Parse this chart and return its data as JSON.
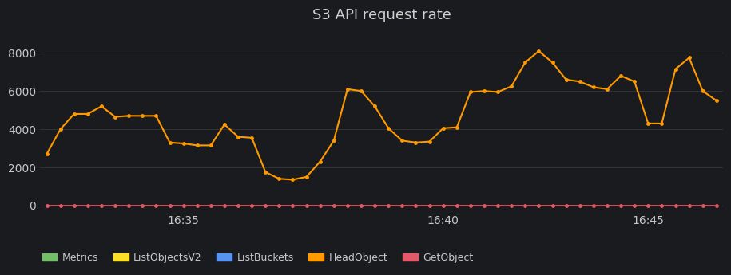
{
  "title": "S3 API request rate",
  "background_color": "#1a1b1e",
  "plot_background_color": "#1a1b1e",
  "grid_color": "#333336",
  "text_color": "#c8c8c8",
  "title_color": "#d0d0d0",
  "x_tick_labels": [
    "16:35",
    "16:40",
    "16:45"
  ],
  "ylim": [
    -300,
    9200
  ],
  "yticks": [
    0,
    2000,
    4000,
    6000,
    8000
  ],
  "head_object_color": "#ff9900",
  "get_object_color": "#e05a6a",
  "metrics_color": "#73bf69",
  "list_objects_color": "#fade2a",
  "list_buckets_color": "#5794f2",
  "head_object_data": [
    2700,
    4000,
    4800,
    4800,
    5200,
    4650,
    4700,
    4700,
    4700,
    3300,
    3250,
    3150,
    3150,
    4250,
    3600,
    3550,
    1750,
    1400,
    1350,
    1500,
    2300,
    3400,
    6100,
    6000,
    5200,
    4050,
    3400,
    3300,
    3350,
    4050,
    4100,
    5950,
    6000,
    5950,
    6250,
    7500,
    8100,
    7500,
    6600,
    6500,
    6200,
    6100,
    6800,
    6500,
    4300,
    4300,
    7150,
    7750,
    6000,
    5500
  ],
  "get_object_data": [
    0,
    0,
    0,
    0,
    0,
    0,
    0,
    0,
    0,
    0,
    0,
    0,
    0,
    0,
    0,
    0,
    0,
    0,
    0,
    0,
    0,
    0,
    0,
    0,
    0,
    0,
    0,
    0,
    0,
    0,
    0,
    0,
    0,
    0,
    0,
    0,
    0,
    0,
    0,
    0,
    0,
    0,
    0,
    0,
    0,
    0,
    0,
    0,
    0,
    0
  ],
  "num_points": 50,
  "legend_entries": [
    {
      "label": "Metrics",
      "color": "#73bf69"
    },
    {
      "label": "ListObjectsV2",
      "color": "#fade2a"
    },
    {
      "label": "ListBuckets",
      "color": "#5794f2"
    },
    {
      "label": "HeadObject",
      "color": "#ff9900"
    },
    {
      "label": "GetObject",
      "color": "#e05a6a"
    }
  ]
}
